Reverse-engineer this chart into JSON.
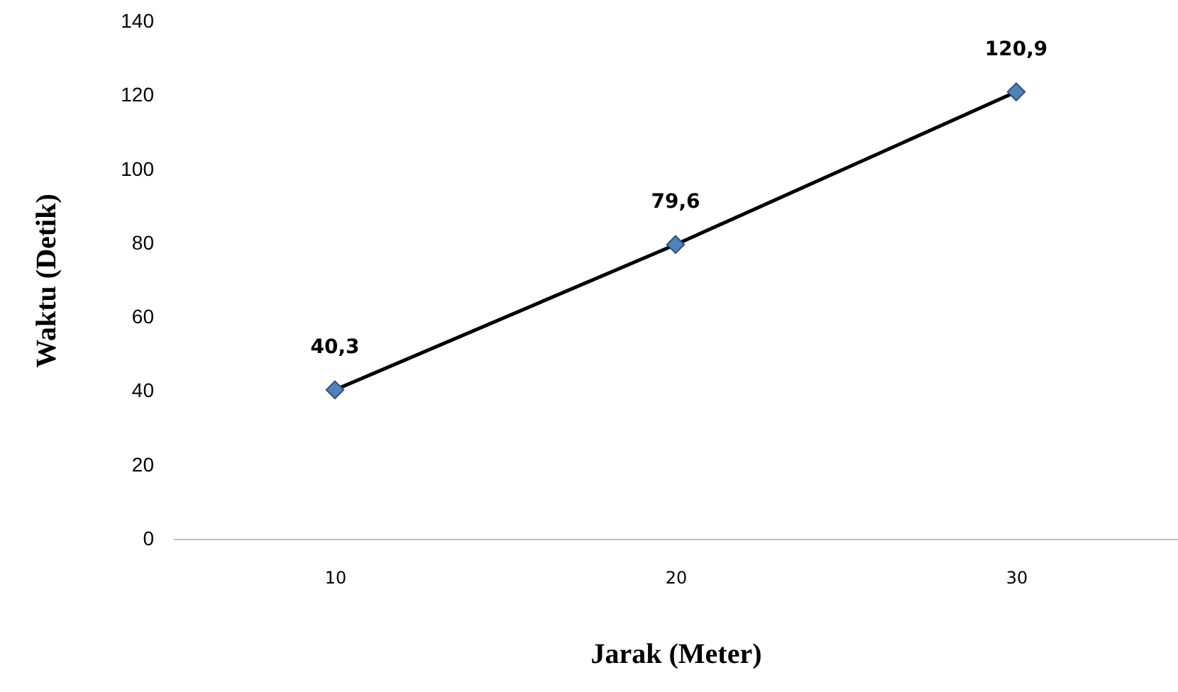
{
  "chart_data": {
    "type": "line",
    "xlabel": "Jarak (Meter)",
    "ylabel": "Waktu (Detik)",
    "categories": [
      "10",
      "20",
      "30"
    ],
    "series": [
      {
        "color": "#000000",
        "colors": [
          "#4f81bd",
          "#4f81bd",
          "#4f81bd"
        ],
        "values": [
          40.3,
          79.6,
          120.9
        ],
        "value_labels": [
          "40,3",
          "79,6",
          "120,9"
        ]
      }
    ],
    "ylim": [
      0,
      140
    ],
    "yticks": [
      0,
      20,
      40,
      60,
      80,
      100,
      120,
      140
    ],
    "marker": "diamond",
    "line_style": "solid"
  }
}
